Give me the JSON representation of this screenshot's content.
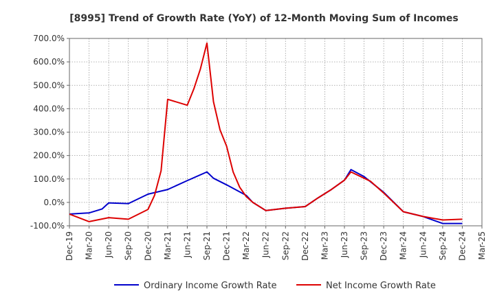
{
  "chart_data": {
    "type": "line",
    "title": "[8995]  Trend of Growth Rate (YoY) of 12-Month Moving Sum of Incomes",
    "xlabel": "",
    "ylabel": "",
    "ylim": [
      -100,
      700
    ],
    "yticks": [
      -100,
      0,
      100,
      200,
      300,
      400,
      500,
      600,
      700
    ],
    "ytick_labels": [
      "-100.0%",
      "0.0%",
      "100.0%",
      "200.0%",
      "300.0%",
      "400.0%",
      "500.0%",
      "600.0%",
      "700.0%"
    ],
    "xtick_labels": [
      "Dec-19",
      "Mar-20",
      "Jun-20",
      "Sep-20",
      "Dec-20",
      "Mar-21",
      "Jun-21",
      "Sep-21",
      "Dec-21",
      "Mar-22",
      "Jun-22",
      "Sep-22",
      "Dec-22",
      "Mar-23",
      "Jun-23",
      "Sep-23",
      "Dec-23",
      "Mar-24",
      "Jun-24",
      "Sep-24",
      "Dec-24",
      "Mar-25"
    ],
    "x_range_months": [
      0,
      63
    ],
    "grid": true,
    "legend_position": "bottom",
    "series": [
      {
        "name": "Ordinary Income Growth Rate",
        "color": "#0000cc",
        "points": [
          [
            0,
            -50
          ],
          [
            3,
            -45
          ],
          [
            5,
            -28
          ],
          [
            6,
            -2
          ],
          [
            9,
            -5
          ],
          [
            12,
            35
          ],
          [
            15,
            55
          ],
          [
            18,
            93
          ],
          [
            21,
            130
          ],
          [
            22,
            103
          ],
          [
            24,
            75
          ],
          [
            27,
            30
          ],
          [
            28,
            0
          ],
          [
            30,
            -35
          ],
          [
            33,
            -25
          ],
          [
            36,
            -18
          ],
          [
            38,
            20
          ],
          [
            40,
            55
          ],
          [
            42,
            95
          ],
          [
            43,
            140
          ],
          [
            45,
            110
          ],
          [
            48,
            43
          ],
          [
            51,
            -40
          ],
          [
            54,
            -60
          ],
          [
            57,
            -90
          ],
          [
            60,
            -90
          ]
        ]
      },
      {
        "name": "Net Income Growth Rate",
        "color": "#dd0000",
        "points": [
          [
            0,
            -50
          ],
          [
            3,
            -82
          ],
          [
            6,
            -65
          ],
          [
            9,
            -72
          ],
          [
            12,
            -30
          ],
          [
            13,
            30
          ],
          [
            14,
            135
          ],
          [
            15,
            440
          ],
          [
            18,
            415
          ],
          [
            19,
            485
          ],
          [
            20,
            570
          ],
          [
            21,
            680
          ],
          [
            22,
            430
          ],
          [
            23,
            310
          ],
          [
            24,
            240
          ],
          [
            25,
            130
          ],
          [
            26,
            65
          ],
          [
            27,
            25
          ],
          [
            28,
            0
          ],
          [
            30,
            -35
          ],
          [
            33,
            -25
          ],
          [
            36,
            -18
          ],
          [
            38,
            20
          ],
          [
            40,
            55
          ],
          [
            42,
            95
          ],
          [
            43,
            130
          ],
          [
            46,
            90
          ],
          [
            48,
            40
          ],
          [
            51,
            -40
          ],
          [
            54,
            -60
          ],
          [
            57,
            -75
          ],
          [
            60,
            -72
          ]
        ]
      }
    ]
  }
}
